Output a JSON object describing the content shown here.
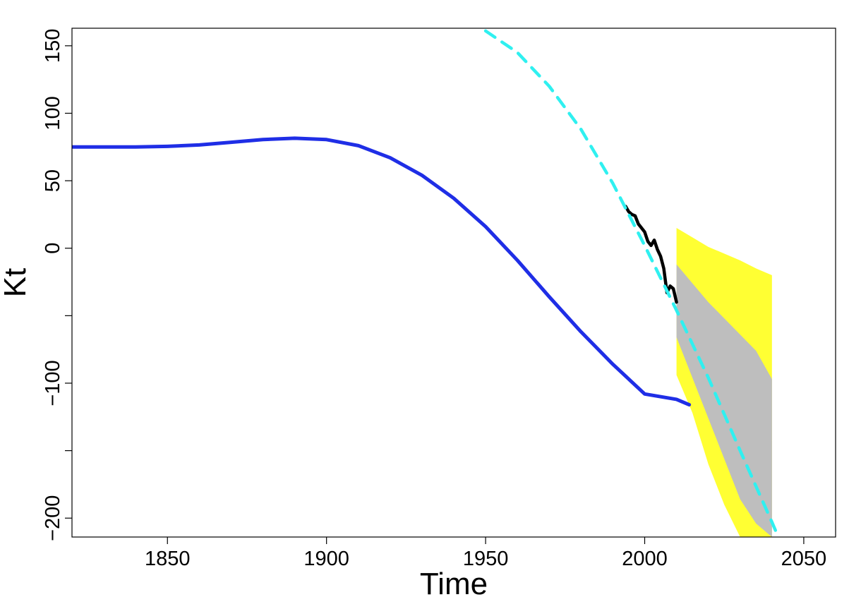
{
  "chart_data": {
    "type": "line",
    "title": "",
    "xlabel": "Time",
    "ylabel": "Kt",
    "xlim": [
      1820,
      2060
    ],
    "ylim": [
      -214,
      163
    ],
    "x_ticks": [
      1850,
      1900,
      1950,
      2000,
      2050
    ],
    "x_tick_labels": [
      "1850",
      "1900",
      "1950",
      "2000",
      "2050"
    ],
    "y_ticks": [
      150,
      100,
      50,
      0,
      -50,
      -100,
      -150,
      -200
    ],
    "y_tick_labels": [
      "150",
      "100",
      "50",
      "0",
      "",
      "−100",
      "",
      "−200"
    ],
    "grid": false,
    "colors": {
      "fitted": "#1f2ee6",
      "observed": "#000000",
      "trend": "#2ff0f0",
      "outer_band": "#ffff33",
      "inner_band": "#bebebe"
    },
    "series": [
      {
        "style": "solid-blue",
        "x": [
          1820,
          1830,
          1840,
          1850,
          1860,
          1870,
          1880,
          1890,
          1900,
          1910,
          1920,
          1930,
          1940,
          1950,
          1960,
          1970,
          1980,
          1990,
          2000,
          2010,
          2014
        ],
        "values": [
          75,
          75,
          75,
          75.5,
          76.5,
          78.5,
          80.5,
          81.5,
          80.5,
          76,
          67,
          54,
          37,
          16,
          -9,
          -36,
          -62,
          -86,
          -108,
          -112,
          -116
        ]
      },
      {
        "style": "solid-black",
        "x": [
          1994,
          1995,
          1996,
          1997,
          1998,
          1999,
          2000,
          2001,
          2002,
          2003,
          2004,
          2005,
          2006,
          2007,
          2008,
          2009,
          2010
        ],
        "values": [
          31,
          27,
          25,
          24,
          18,
          15,
          12,
          5,
          2,
          6,
          -1,
          -6,
          -15,
          -33,
          -28,
          -30,
          -40
        ]
      },
      {
        "style": "dashed-cyan",
        "x": [
          1950,
          1960,
          1970,
          1980,
          1990,
          2000,
          2010,
          2020,
          2030,
          2040,
          2042
        ],
        "values": [
          161,
          145,
          120,
          88,
          48,
          2,
          -46,
          -96,
          -150,
          -203,
          -214
        ]
      }
    ],
    "bands": [
      {
        "level": "outer",
        "x": [
          2010,
          2015,
          2020,
          2025,
          2030,
          2035,
          2040
        ],
        "upper": [
          15,
          8,
          1,
          -4,
          -9,
          -15,
          -20
        ],
        "lower": [
          -94,
          -122,
          -160,
          -190,
          -214,
          -214,
          -214
        ]
      },
      {
        "level": "inner",
        "x": [
          2010,
          2015,
          2020,
          2025,
          2030,
          2035,
          2040
        ],
        "upper": [
          -12,
          -26,
          -40,
          -52,
          -64,
          -76,
          -97
        ],
        "lower": [
          -66,
          -96,
          -126,
          -156,
          -186,
          -204,
          -214
        ]
      }
    ]
  }
}
